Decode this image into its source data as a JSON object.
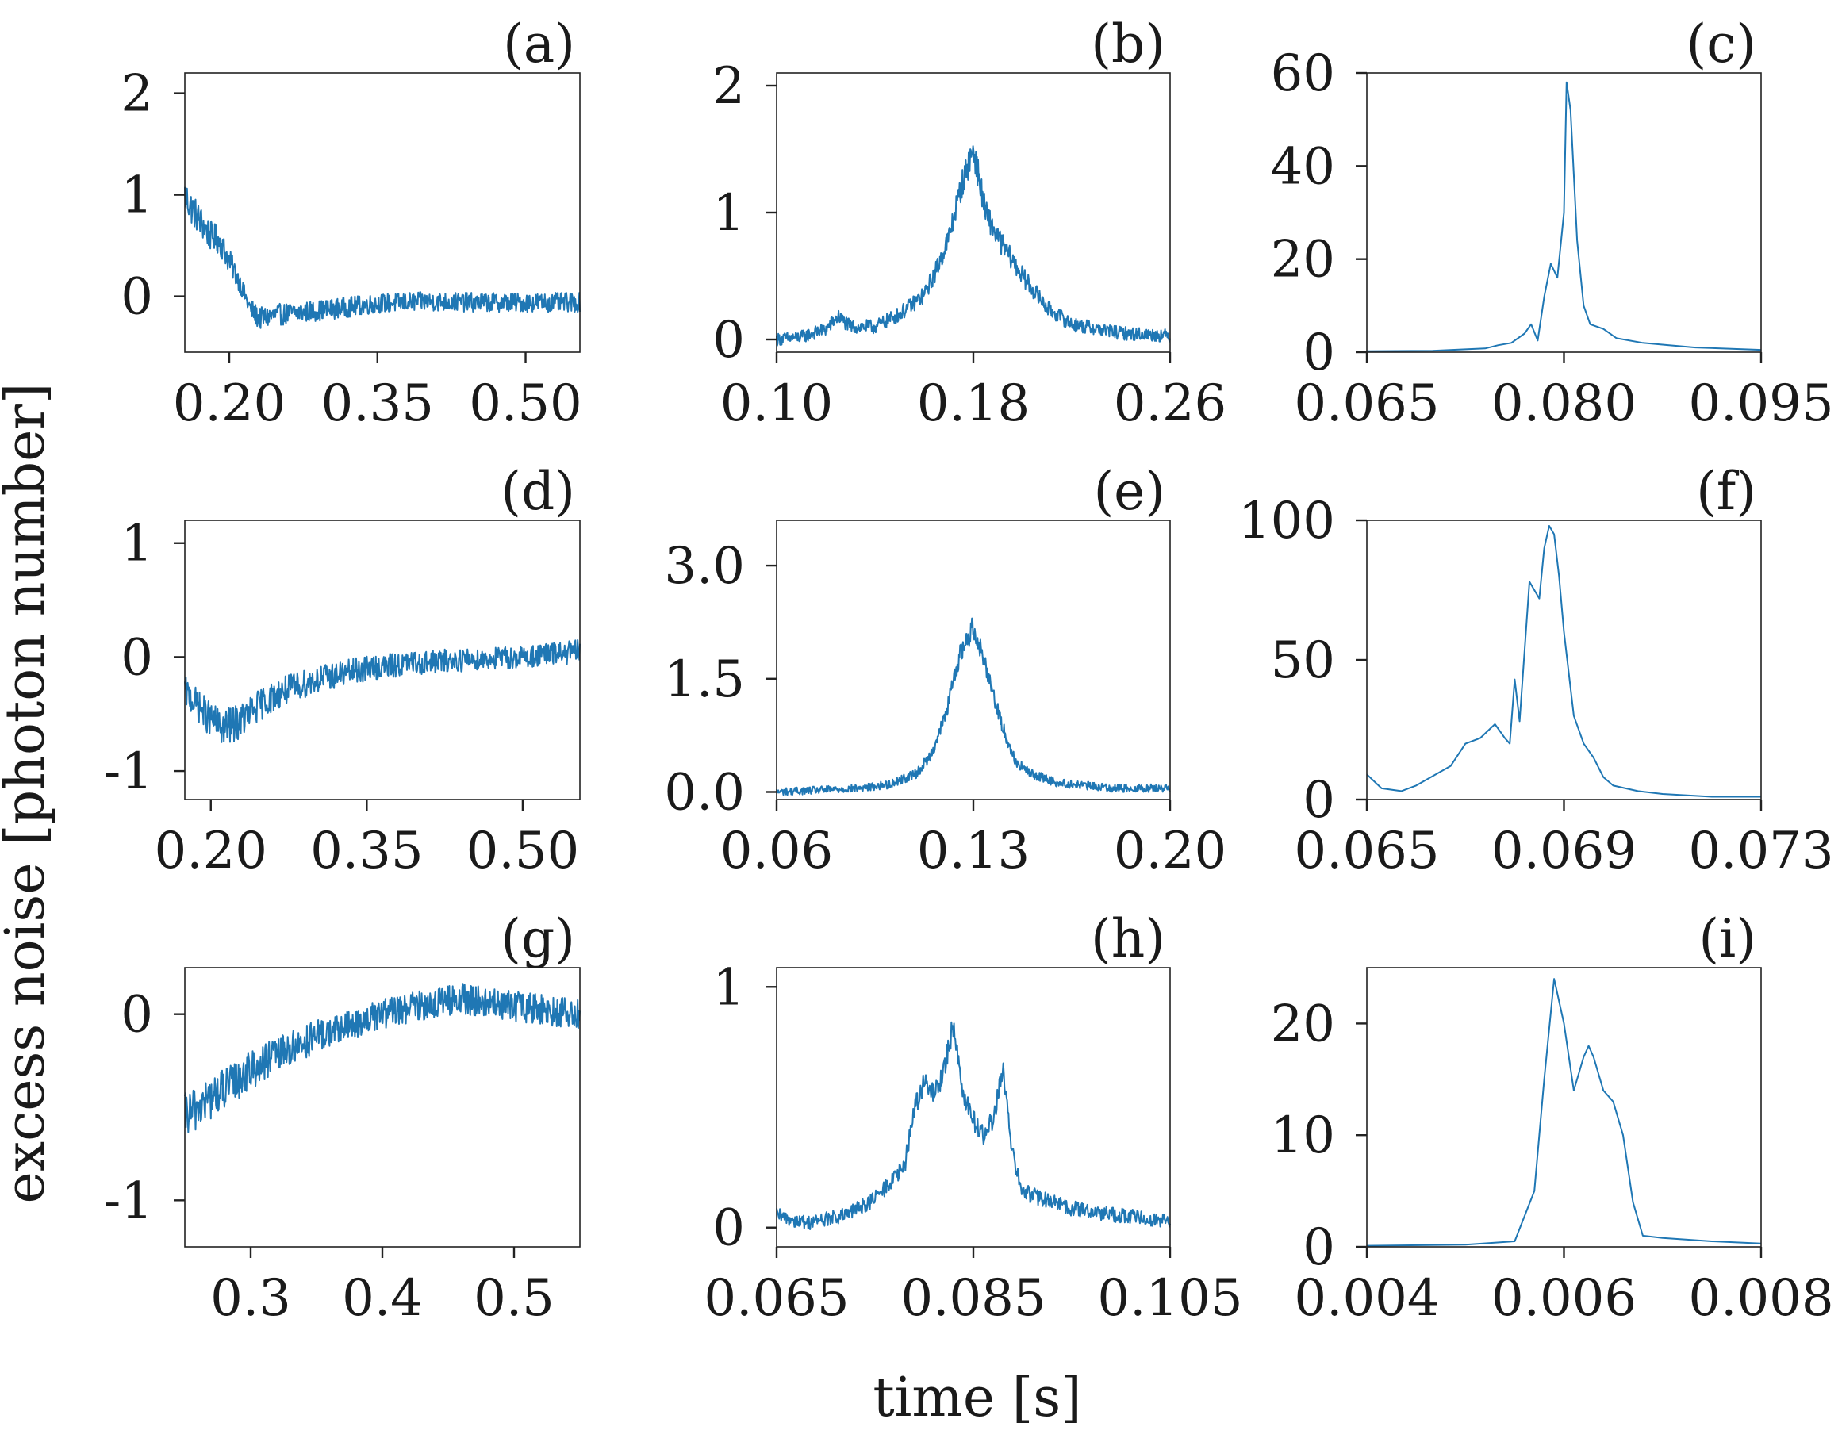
{
  "figure": {
    "ylabel": "excess noise [photon number]",
    "xlabel": "time [s]",
    "line_color": "#1f77b4"
  },
  "chart_data": [
    {
      "id": "a",
      "label": "(a)",
      "type": "line",
      "xlim": [
        0.155,
        0.555
      ],
      "ylim": [
        -0.55,
        2.2
      ],
      "xticks": [
        0.2,
        0.35,
        0.5
      ],
      "xtick_labels": [
        "0.20",
        "0.35",
        "0.50"
      ],
      "yticks": [
        0,
        1,
        2
      ],
      "ytick_labels": [
        "0",
        "1",
        "2"
      ],
      "series": [
        {
          "name": "excess noise",
          "style": "noisy",
          "noise": 0.09,
          "n": 700,
          "x": [
            0.155,
            0.16,
            0.17,
            0.18,
            0.19,
            0.2,
            0.21,
            0.22,
            0.23,
            0.25,
            0.3,
            0.35,
            0.4,
            0.45,
            0.5,
            0.555
          ],
          "y": [
            1.0,
            0.9,
            0.75,
            0.6,
            0.55,
            0.35,
            0.15,
            -0.1,
            -0.22,
            -0.18,
            -0.13,
            -0.07,
            -0.05,
            -0.06,
            -0.06,
            -0.06
          ]
        }
      ]
    },
    {
      "id": "b",
      "label": "(b)",
      "type": "line",
      "xlim": [
        0.1,
        0.26
      ],
      "ylim": [
        -0.1,
        2.1
      ],
      "xticks": [
        0.1,
        0.18,
        0.26
      ],
      "xtick_labels": [
        "0.10",
        "0.18",
        "0.26"
      ],
      "yticks": [
        0,
        1,
        2
      ],
      "ytick_labels": [
        "0",
        "1",
        "2"
      ],
      "series": [
        {
          "name": "excess noise",
          "style": "noisy",
          "noise": 0.05,
          "n": 700,
          "x": [
            0.1,
            0.11,
            0.12,
            0.125,
            0.13,
            0.14,
            0.15,
            0.16,
            0.165,
            0.17,
            0.175,
            0.18,
            0.185,
            0.19,
            0.2,
            0.21,
            0.22,
            0.24,
            0.26
          ],
          "y": [
            0.0,
            0.02,
            0.08,
            0.18,
            0.1,
            0.1,
            0.2,
            0.35,
            0.55,
            0.8,
            1.2,
            1.5,
            1.0,
            0.8,
            0.5,
            0.25,
            0.12,
            0.05,
            0.03
          ]
        }
      ]
    },
    {
      "id": "c",
      "label": "(c)",
      "type": "line",
      "xlim": [
        0.065,
        0.095
      ],
      "ylim": [
        0,
        60
      ],
      "xticks": [
        0.065,
        0.08,
        0.095
      ],
      "xtick_labels": [
        "0.065",
        "0.080",
        "0.095"
      ],
      "yticks": [
        0,
        20,
        40,
        60
      ],
      "ytick_labels": [
        "0",
        "20",
        "40",
        "60"
      ],
      "series": [
        {
          "name": "excess noise",
          "style": "smooth",
          "x": [
            0.065,
            0.07,
            0.074,
            0.075,
            0.076,
            0.077,
            0.0775,
            0.078,
            0.0785,
            0.079,
            0.0795,
            0.08,
            0.0802,
            0.0805,
            0.081,
            0.0815,
            0.082,
            0.083,
            0.084,
            0.086,
            0.088,
            0.09,
            0.095
          ],
          "y": [
            0.2,
            0.3,
            0.8,
            1.5,
            2.0,
            4.0,
            6.0,
            2.5,
            12.0,
            19.0,
            16.0,
            30.0,
            58.0,
            52.0,
            24.0,
            10.0,
            6.0,
            5.0,
            3.0,
            2.0,
            1.5,
            1.0,
            0.5
          ]
        }
      ]
    },
    {
      "id": "d",
      "label": "(d)",
      "type": "line",
      "xlim": [
        0.175,
        0.555
      ],
      "ylim": [
        -1.25,
        1.2
      ],
      "xticks": [
        0.2,
        0.35,
        0.5
      ],
      "xtick_labels": [
        "0.20",
        "0.35",
        "0.50"
      ],
      "yticks": [
        -1,
        0,
        1
      ],
      "ytick_labels": [
        "-1",
        "0",
        "1"
      ],
      "series": [
        {
          "name": "excess noise",
          "style": "noisy",
          "noise": 0.1,
          "n": 700,
          "x": [
            0.175,
            0.19,
            0.2,
            0.21,
            0.22,
            0.23,
            0.25,
            0.27,
            0.3,
            0.35,
            0.4,
            0.45,
            0.5,
            0.555
          ],
          "y": [
            -0.3,
            -0.45,
            -0.55,
            -0.62,
            -0.6,
            -0.55,
            -0.4,
            -0.3,
            -0.2,
            -0.1,
            -0.05,
            -0.02,
            0.0,
            0.05
          ]
        }
      ]
    },
    {
      "id": "e",
      "label": "(e)",
      "type": "line",
      "xlim": [
        0.06,
        0.2
      ],
      "ylim": [
        -0.1,
        3.6
      ],
      "xticks": [
        0.06,
        0.13,
        0.2
      ],
      "xtick_labels": [
        "0.06",
        "0.13",
        "0.20"
      ],
      "yticks": [
        0.0,
        1.5,
        3.0
      ],
      "ytick_labels": [
        "0.0",
        "1.5",
        "3.0"
      ],
      "series": [
        {
          "name": "excess noise",
          "style": "noisy",
          "noise": 0.05,
          "n": 700,
          "x": [
            0.06,
            0.09,
            0.1,
            0.11,
            0.115,
            0.12,
            0.125,
            0.13,
            0.135,
            0.14,
            0.145,
            0.15,
            0.16,
            0.18,
            0.2
          ],
          "y": [
            0.0,
            0.05,
            0.1,
            0.25,
            0.5,
            1.0,
            1.8,
            2.2,
            1.6,
            0.9,
            0.4,
            0.25,
            0.12,
            0.05,
            0.05
          ]
        }
      ]
    },
    {
      "id": "f",
      "label": "(f)",
      "type": "line",
      "xlim": [
        0.065,
        0.073
      ],
      "ylim": [
        0,
        100
      ],
      "xticks": [
        0.065,
        0.069,
        0.073
      ],
      "xtick_labels": [
        "0.065",
        "0.069",
        "0.073"
      ],
      "yticks": [
        0,
        50,
        100
      ],
      "ytick_labels": [
        "0",
        "50",
        "100"
      ],
      "series": [
        {
          "name": "excess noise",
          "style": "smooth",
          "x": [
            0.065,
            0.0653,
            0.0657,
            0.066,
            0.0663,
            0.0667,
            0.067,
            0.0673,
            0.0676,
            0.0678,
            0.0679,
            0.068,
            0.0681,
            0.0683,
            0.0685,
            0.0686,
            0.0687,
            0.0688,
            0.0689,
            0.069,
            0.0691,
            0.0692,
            0.0694,
            0.0696,
            0.0698,
            0.07,
            0.0705,
            0.071,
            0.072,
            0.073
          ],
          "y": [
            9.0,
            4.0,
            3.0,
            5.0,
            8.0,
            12.0,
            20.0,
            22.0,
            27.0,
            22.0,
            20.0,
            43.0,
            28.0,
            78.0,
            72.0,
            90.0,
            98.0,
            95.0,
            80.0,
            60.0,
            45.0,
            30.0,
            20.0,
            15.0,
            8.0,
            5.0,
            3.0,
            2.0,
            1.0,
            1.0
          ]
        }
      ]
    },
    {
      "id": "g",
      "label": "(g)",
      "type": "line",
      "xlim": [
        0.25,
        0.55
      ],
      "ylim": [
        -1.25,
        0.25
      ],
      "xticks": [
        0.3,
        0.4,
        0.5
      ],
      "xtick_labels": [
        "0.3",
        "0.4",
        "0.5"
      ],
      "yticks": [
        -1,
        0
      ],
      "ytick_labels": [
        "-1",
        "0"
      ],
      "series": [
        {
          "name": "excess noise",
          "style": "noisy",
          "noise": 0.08,
          "n": 700,
          "x": [
            0.25,
            0.26,
            0.28,
            0.3,
            0.32,
            0.35,
            0.38,
            0.4,
            0.43,
            0.46,
            0.5,
            0.55
          ],
          "y": [
            -0.55,
            -0.5,
            -0.4,
            -0.3,
            -0.22,
            -0.12,
            -0.05,
            0.0,
            0.05,
            0.08,
            0.04,
            0.0
          ]
        }
      ]
    },
    {
      "id": "h",
      "label": "(h)",
      "type": "line",
      "xlim": [
        0.065,
        0.105
      ],
      "ylim": [
        -0.08,
        1.08
      ],
      "xticks": [
        0.065,
        0.085,
        0.105
      ],
      "xtick_labels": [
        "0.065",
        "0.085",
        "0.105"
      ],
      "yticks": [
        0,
        1
      ],
      "ytick_labels": [
        "0",
        "1"
      ],
      "series": [
        {
          "name": "excess noise",
          "style": "noisy",
          "noise": 0.03,
          "n": 600,
          "x": [
            0.065,
            0.068,
            0.072,
            0.075,
            0.078,
            0.079,
            0.08,
            0.081,
            0.082,
            0.083,
            0.084,
            0.085,
            0.086,
            0.087,
            0.088,
            0.089,
            0.09,
            0.092,
            0.095,
            0.1,
            0.105
          ],
          "y": [
            0.05,
            0.02,
            0.05,
            0.12,
            0.25,
            0.5,
            0.6,
            0.55,
            0.65,
            0.85,
            0.55,
            0.45,
            0.38,
            0.45,
            0.65,
            0.3,
            0.15,
            0.12,
            0.08,
            0.05,
            0.03
          ]
        }
      ]
    },
    {
      "id": "i",
      "label": "(i)",
      "type": "line",
      "xlim": [
        0.004,
        0.008
      ],
      "ylim": [
        0,
        25
      ],
      "xticks": [
        0.004,
        0.006,
        0.008
      ],
      "xtick_labels": [
        "0.004",
        "0.006",
        "0.008"
      ],
      "yticks": [
        0,
        10,
        20
      ],
      "ytick_labels": [
        "0",
        "10",
        "20"
      ],
      "series": [
        {
          "name": "excess noise",
          "style": "smooth",
          "x": [
            0.004,
            0.005,
            0.0055,
            0.0057,
            0.0058,
            0.0059,
            0.006,
            0.0061,
            0.0062,
            0.00625,
            0.0063,
            0.0064,
            0.0065,
            0.0066,
            0.0067,
            0.0068,
            0.007,
            0.0075,
            0.008
          ],
          "y": [
            0.1,
            0.2,
            0.5,
            5.0,
            15.0,
            24.0,
            20.0,
            14.0,
            17.0,
            18.0,
            17.0,
            14.0,
            13.0,
            10.0,
            4.0,
            1.0,
            0.8,
            0.5,
            0.3
          ]
        }
      ]
    }
  ]
}
